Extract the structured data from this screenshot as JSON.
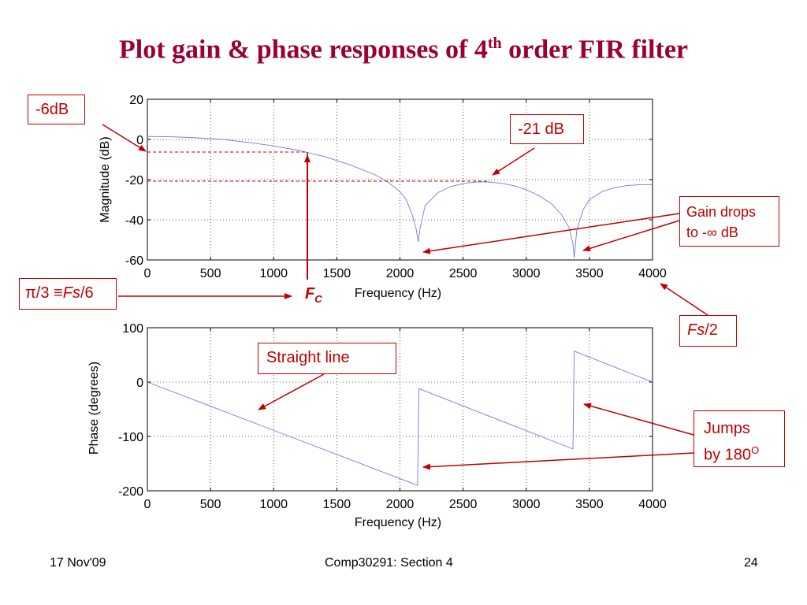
{
  "slide": {
    "title_main": "Plot gain & phase responses of 4",
    "title_sup": "th",
    "title_end": " order FIR filter",
    "footer_left": "17 Nov'09",
    "footer_center": "Comp30291: Section 4",
    "footer_right": "24"
  },
  "annotations": {
    "minus6db": "-6dB",
    "minus21db": "-21 dB",
    "gain_drops_1": "Gain drops",
    "gain_drops_2": "to -∞ dB",
    "pi3": "π/3 ≡",
    "fs6_fs": "Fs",
    "fs6_rest": "/6",
    "fc": "F",
    "fc_sub": "C",
    "fs2_fs": "Fs",
    "fs2_rest": "/2",
    "straight_line": "Straight line",
    "jumps_1": "Jumps",
    "jumps_2": "by 180",
    "jumps_sup": "O"
  },
  "colors": {
    "title": "#990033",
    "annotation": "#c00000",
    "curve": "#6e78e6"
  },
  "chart_data": [
    {
      "type": "line",
      "xlabel": "Frequency (Hz)",
      "ylabel": "Magnitude (dB)",
      "xlim": [
        0,
        4000
      ],
      "ylim": [
        -60,
        20
      ],
      "xticks": [
        0,
        500,
        1000,
        1500,
        2000,
        2500,
        3000,
        3500,
        4000
      ],
      "yticks": [
        20,
        0,
        -20,
        -40,
        -60
      ],
      "grid": true,
      "x": [
        0,
        200,
        400,
        600,
        800,
        1000,
        1200,
        1400,
        1600,
        1800,
        1900,
        2000,
        2050,
        2100,
        2130,
        2145,
        2160,
        2200,
        2300,
        2400,
        2500,
        2600,
        2700,
        2800,
        2900,
        3000,
        3100,
        3200,
        3280,
        3340,
        3370,
        3380,
        3400,
        3450,
        3500,
        3600,
        3700,
        3800,
        3900,
        4000
      ],
      "y": [
        1.5,
        1.3,
        0.8,
        0,
        -1.5,
        -3.2,
        -5.5,
        -8.5,
        -12.5,
        -17.5,
        -21,
        -26,
        -30,
        -38,
        -45,
        -51,
        -44,
        -33,
        -26.5,
        -23.5,
        -22,
        -21.2,
        -21.2,
        -21.8,
        -23,
        -25,
        -28,
        -32,
        -37.5,
        -44,
        -52,
        -59,
        -45,
        -35,
        -30,
        -26,
        -24,
        -23,
        -22.5,
        -22.5
      ]
    },
    {
      "type": "line",
      "xlabel": "Frequency (Hz)",
      "ylabel": "Phase (degrees)",
      "xlim": [
        0,
        4000
      ],
      "ylim": [
        -200,
        100
      ],
      "xticks": [
        0,
        500,
        1000,
        1500,
        2000,
        2500,
        3000,
        3500,
        4000
      ],
      "yticks": [
        100,
        0,
        -100,
        -200
      ],
      "grid": true,
      "x": [
        0,
        2140,
        2150,
        3370,
        3380,
        4000
      ],
      "y": [
        0,
        -190,
        -12,
        -123,
        57,
        0
      ]
    }
  ]
}
